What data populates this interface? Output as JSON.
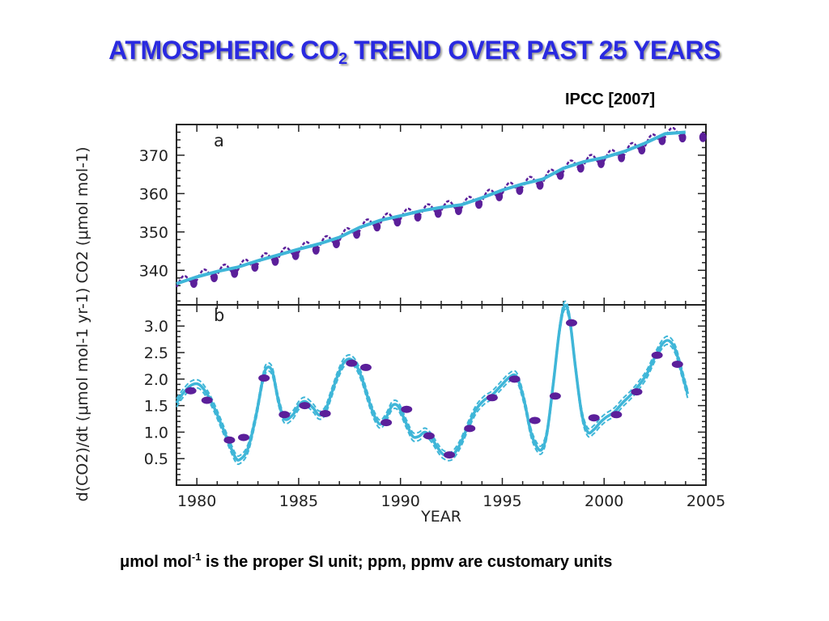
{
  "slide": {
    "title_main": "ATMOSPHERIC CO",
    "title_sub": "2",
    "title_rest": " TREND OVER PAST 25 YEARS",
    "source": "IPCC [2007]",
    "footnote_mu": "μ",
    "footnote_unit": "mol mol",
    "footnote_exp": "-1",
    "footnote_rest": "  is the proper SI unit; ppm, ppmv are customary units"
  },
  "colors": {
    "title": "#2a2ae0",
    "trend_line": "#3fb6d8",
    "observations": "#5b1f9a",
    "axes": "#222222"
  },
  "chart_data": [
    {
      "type": "line",
      "panel_label": "a",
      "xlabel": "",
      "ylabel": "CO2 (μmol mol-1)",
      "xlim": [
        1979,
        2005
      ],
      "ylim": [
        331,
        378
      ],
      "yticks": [
        "340",
        "350",
        "360",
        "370"
      ],
      "grid": false,
      "series": [
        {
          "role": "trend",
          "x": [
            1979,
            1980,
            1981,
            1982,
            1983,
            1984,
            1985,
            1986,
            1987,
            1988,
            1989,
            1990,
            1991,
            1992,
            1993,
            1994,
            1995,
            1996,
            1997,
            1998,
            1999,
            2000,
            2001,
            2002,
            2003,
            2004
          ],
          "values": [
            336.5,
            338.3,
            339.7,
            340.8,
            342.5,
            344.0,
            345.5,
            346.9,
            348.6,
            351.2,
            353.0,
            354.2,
            355.5,
            356.4,
            357.1,
            358.9,
            360.9,
            362.5,
            363.8,
            366.6,
            368.3,
            369.4,
            371.0,
            373.1,
            375.6,
            376.0
          ]
        },
        {
          "role": "monthly observations",
          "seasonal_amplitude": 1.4,
          "x": [
            1979,
            1980,
            1981,
            1982,
            1983,
            1984,
            1985,
            1986,
            1987,
            1988,
            1989,
            1990,
            1991,
            1992,
            1993,
            1994,
            1995,
            1996,
            1997,
            1998,
            1999,
            2000,
            2001,
            2002,
            2003,
            2004
          ],
          "values": [
            336.5,
            338.3,
            339.7,
            340.8,
            342.5,
            344.0,
            345.5,
            346.9,
            348.6,
            351.2,
            353.0,
            354.2,
            355.5,
            356.4,
            357.1,
            358.9,
            360.9,
            362.5,
            363.8,
            366.6,
            368.3,
            369.4,
            371.0,
            373.1,
            375.6,
            376.0
          ]
        }
      ]
    },
    {
      "type": "line",
      "panel_label": "b",
      "xlabel": "YEAR",
      "ylabel": "d(CO2)/dt (μmol mol-1 yr-1)",
      "xlim": [
        1979,
        2005
      ],
      "ylim": [
        0,
        3.4
      ],
      "yticks": [
        "0.5",
        "1.0",
        "1.5",
        "2.0",
        "2.5",
        "3.0"
      ],
      "xticks": [
        "1980",
        "1985",
        "1990",
        "1995",
        "2000",
        "2005"
      ],
      "grid": false,
      "series": [
        {
          "role": "growth rate curve",
          "x": [
            1979.0,
            1979.3,
            1979.7,
            1980.1,
            1980.5,
            1980.9,
            1981.3,
            1981.7,
            1981.9,
            1982.1,
            1982.5,
            1982.9,
            1983.2,
            1983.4,
            1983.7,
            1984.0,
            1984.3,
            1984.7,
            1985.0,
            1985.3,
            1985.7,
            1986.0,
            1986.3,
            1986.6,
            1986.9,
            1987.2,
            1987.5,
            1987.8,
            1988.1,
            1988.4,
            1988.7,
            1989.0,
            1989.3,
            1989.6,
            1989.9,
            1990.3,
            1990.6,
            1990.9,
            1991.2,
            1991.5,
            1991.8,
            1992.1,
            1992.5,
            1992.9,
            1993.3,
            1993.7,
            1994.1,
            1994.5,
            1994.9,
            1995.3,
            1995.6,
            1995.8,
            1996.1,
            1996.4,
            1996.7,
            1996.95,
            1997.2,
            1997.5,
            1997.8,
            1998.05,
            1998.3,
            1998.6,
            1998.9,
            1999.2,
            1999.5,
            1999.8,
            2000.1,
            2000.5,
            2000.9,
            2001.3,
            2001.7,
            2002.1,
            2002.5,
            2002.9,
            2003.2,
            2003.5,
            2003.8,
            2004.1
          ],
          "values": [
            1.55,
            1.72,
            1.88,
            1.9,
            1.72,
            1.42,
            1.05,
            0.68,
            0.52,
            0.48,
            0.68,
            1.3,
            1.92,
            2.2,
            2.15,
            1.6,
            1.25,
            1.32,
            1.5,
            1.58,
            1.46,
            1.32,
            1.4,
            1.72,
            2.05,
            2.3,
            2.38,
            2.28,
            2.02,
            1.65,
            1.32,
            1.15,
            1.28,
            1.5,
            1.48,
            1.15,
            0.92,
            0.92,
            1.0,
            0.9,
            0.72,
            0.58,
            0.55,
            0.75,
            1.1,
            1.42,
            1.6,
            1.7,
            1.86,
            2.02,
            2.08,
            1.96,
            1.55,
            1.0,
            0.72,
            0.68,
            1.0,
            1.9,
            2.9,
            3.38,
            3.15,
            2.2,
            1.35,
            1.0,
            1.05,
            1.18,
            1.28,
            1.38,
            1.55,
            1.7,
            1.88,
            2.1,
            2.42,
            2.68,
            2.72,
            2.55,
            2.15,
            1.72
          ]
        },
        {
          "role": "annual growth rate",
          "x": [
            1979.7,
            1980.5,
            1981.6,
            1982.3,
            1983.3,
            1984.3,
            1985.3,
            1986.3,
            1987.6,
            1988.3,
            1989.3,
            1990.3,
            1991.4,
            1992.4,
            1993.4,
            1994.5,
            1995.6,
            1996.6,
            1997.6,
            1998.4,
            1999.5,
            2000.6,
            2001.6,
            2002.6,
            2003.6
          ],
          "values": [
            1.78,
            1.6,
            0.85,
            0.9,
            2.02,
            1.33,
            1.5,
            1.35,
            2.3,
            2.22,
            1.18,
            1.43,
            0.93,
            0.57,
            1.07,
            1.65,
            2.0,
            1.22,
            1.68,
            3.06,
            1.27,
            1.33,
            1.76,
            2.45,
            2.28
          ]
        }
      ]
    }
  ]
}
